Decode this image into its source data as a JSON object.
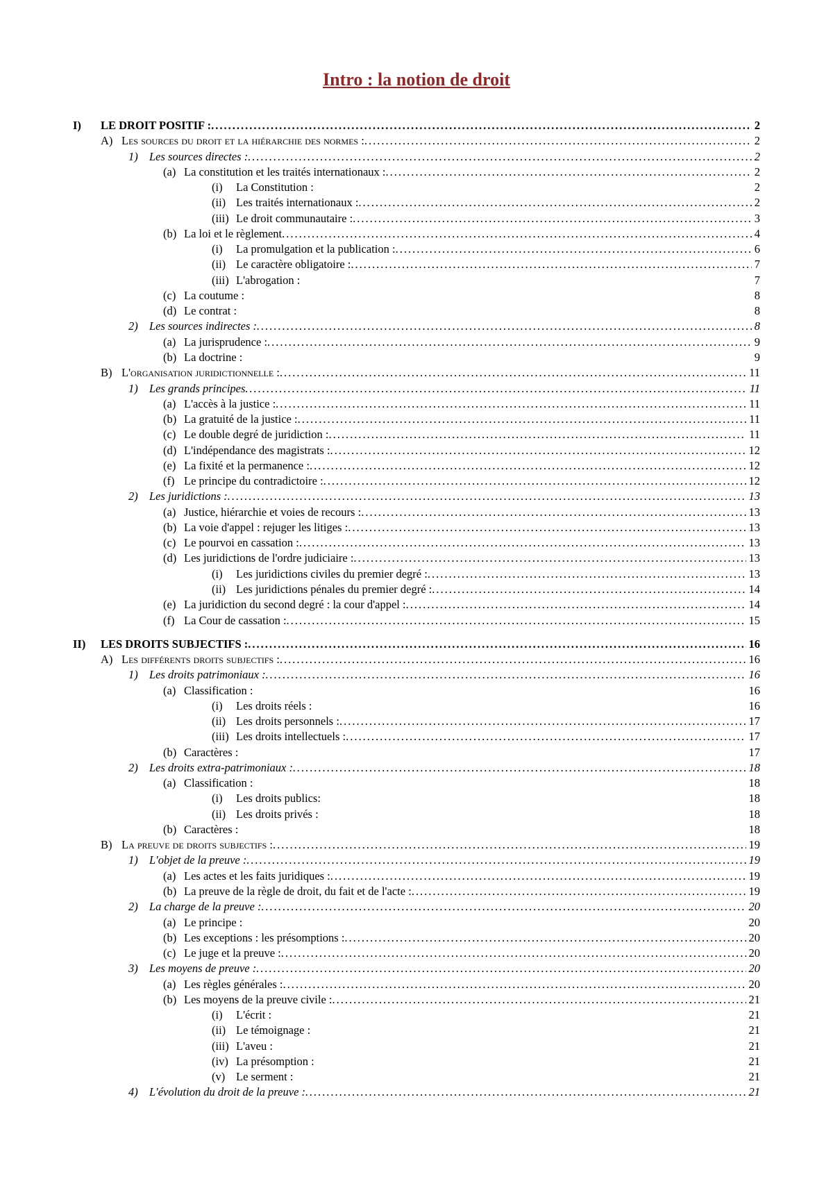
{
  "title": "Intro : la notion de droit",
  "title_color": "#8b2a2a",
  "entries": [
    {
      "level": 1,
      "label": "I)",
      "text": "LE DROIT POSITIF :",
      "page": "2",
      "leader": true,
      "bold": true
    },
    {
      "level": 2,
      "label": "A)",
      "text": "Les sources du droit et la hiérarchie des normes :",
      "page": "2",
      "leader": true,
      "smallcaps": true
    },
    {
      "level": 3,
      "label": "1)",
      "text": "Les sources directes :",
      "page": "2",
      "leader": true,
      "italic": true
    },
    {
      "level": 4,
      "label": "(a)",
      "text": "La constitution et les traités internationaux :",
      "page": "2",
      "leader": true
    },
    {
      "level": 5,
      "label": "(i)",
      "text": "La Constitution :",
      "page": "2",
      "leader": false
    },
    {
      "level": 5,
      "label": "(ii)",
      "text": "Les traités internationaux :",
      "page": "2",
      "leader": true
    },
    {
      "level": 5,
      "label": "(iii)",
      "text": "Le droit communautaire :",
      "page": "3",
      "leader": true
    },
    {
      "level": 4,
      "label": "(b)",
      "text": "La loi et le règlement",
      "page": "4",
      "leader": true
    },
    {
      "level": 5,
      "label": "(i)",
      "text": "La promulgation et la publication :",
      "page": "6",
      "leader": true
    },
    {
      "level": 5,
      "label": "(ii)",
      "text": "Le caractère obligatoire :",
      "page": "7",
      "leader": true
    },
    {
      "level": 5,
      "label": "(iii)",
      "text": "L'abrogation :",
      "page": "7",
      "leader": false
    },
    {
      "level": 4,
      "label": "(c)",
      "text": "La coutume :",
      "page": "8",
      "leader": false
    },
    {
      "level": 4,
      "label": "(d)",
      "text": "Le contrat :",
      "page": "8",
      "leader": false
    },
    {
      "level": 3,
      "label": "2)",
      "text": "Les sources indirectes :",
      "page": "8",
      "leader": true,
      "italic": true
    },
    {
      "level": 4,
      "label": "(a)",
      "text": "La jurisprudence :",
      "page": "9",
      "leader": true
    },
    {
      "level": 4,
      "label": "(b)",
      "text": "La doctrine :",
      "page": "9",
      "leader": false
    },
    {
      "level": 2,
      "label": "B)",
      "text": "L'organisation juridictionnelle :",
      "page": "11",
      "leader": true,
      "smallcaps": true
    },
    {
      "level": 3,
      "label": "1)",
      "text": "Les grands principes",
      "page": "11",
      "leader": true,
      "italic": true
    },
    {
      "level": 4,
      "label": "(a)",
      "text": "L'accès à la justice :",
      "page": "11",
      "leader": true
    },
    {
      "level": 4,
      "label": "(b)",
      "text": "La gratuité de la justice :",
      "page": "11",
      "leader": true
    },
    {
      "level": 4,
      "label": "(c)",
      "text": "Le double degré de juridiction :",
      "page": "11",
      "leader": true
    },
    {
      "level": 4,
      "label": "(d)",
      "text": "L'indépendance des magistrats :",
      "page": "12",
      "leader": true
    },
    {
      "level": 4,
      "label": "(e)",
      "text": "La fixité et la permanence :",
      "page": "12",
      "leader": true
    },
    {
      "level": 4,
      "label": "(f)",
      "text": "Le principe du contradictoire :",
      "page": "12",
      "leader": true
    },
    {
      "level": 3,
      "label": "2)",
      "text": "Les juridictions :",
      "page": "13",
      "leader": true,
      "italic": true
    },
    {
      "level": 4,
      "label": "(a)",
      "text": "Justice, hiérarchie et voies de recours :",
      "page": "13",
      "leader": true
    },
    {
      "level": 4,
      "label": "(b)",
      "text": "La voie d'appel : rejuger les litiges :",
      "page": "13",
      "leader": true
    },
    {
      "level": 4,
      "label": "(c)",
      "text": "Le pourvoi en cassation :",
      "page": "13",
      "leader": true
    },
    {
      "level": 4,
      "label": "(d)",
      "text": "Les juridictions de l'ordre judiciaire :",
      "page": "13",
      "leader": true
    },
    {
      "level": 5,
      "label": "(i)",
      "text": "Les juridictions civiles du premier degré :",
      "page": "13",
      "leader": true
    },
    {
      "level": 5,
      "label": "(ii)",
      "text": "Les juridictions pénales du premier degré :",
      "page": "14",
      "leader": true
    },
    {
      "level": 4,
      "label": "(e)",
      "text": "La juridiction du second degré : la cour d'appel :",
      "page": "14",
      "leader": true
    },
    {
      "level": 4,
      "label": "(f)",
      "text": "La Cour de cassation :",
      "page": "15",
      "leader": true
    },
    {
      "level": 1,
      "label": "II)",
      "text": "LES DROITS SUBJECTIFS :",
      "page": "16",
      "leader": true,
      "bold": true
    },
    {
      "level": 2,
      "label": "A)",
      "text": "Les différents droits subjectifs :",
      "page": "16",
      "leader": true,
      "smallcaps": true
    },
    {
      "level": 3,
      "label": "1)",
      "text": "Les droits patrimoniaux :",
      "page": "16",
      "leader": true,
      "italic": true
    },
    {
      "level": 4,
      "label": "(a)",
      "text": "Classification :",
      "page": "16",
      "leader": false
    },
    {
      "level": 5,
      "label": "(i)",
      "text": "Les droits réels :",
      "page": "16",
      "leader": false
    },
    {
      "level": 5,
      "label": "(ii)",
      "text": "Les droits personnels :",
      "page": "17",
      "leader": true
    },
    {
      "level": 5,
      "label": "(iii)",
      "text": "Les droits intellectuels :",
      "page": "17",
      "leader": true
    },
    {
      "level": 4,
      "label": "(b)",
      "text": "Caractères :",
      "page": "17",
      "leader": false
    },
    {
      "level": 3,
      "label": "2)",
      "text": "Les droits extra-patrimoniaux :",
      "page": "18",
      "leader": true,
      "italic": true
    },
    {
      "level": 4,
      "label": "(a)",
      "text": "Classification :",
      "page": "18",
      "leader": false
    },
    {
      "level": 5,
      "label": "(i)",
      "text": "Les droits publics:",
      "page": "18",
      "leader": false
    },
    {
      "level": 5,
      "label": "(ii)",
      "text": "Les droits privés :",
      "page": "18",
      "leader": false
    },
    {
      "level": 4,
      "label": "(b)",
      "text": "Caractères :",
      "page": "18",
      "leader": false
    },
    {
      "level": 2,
      "label": "B)",
      "text": "La preuve de droits subjectifs :",
      "page": "19",
      "leader": true,
      "smallcaps": true
    },
    {
      "level": 3,
      "label": "1)",
      "text": "L'objet de la preuve :",
      "page": "19",
      "leader": true,
      "italic": true
    },
    {
      "level": 4,
      "label": "(a)",
      "text": "Les actes et les faits juridiques :",
      "page": "19",
      "leader": true
    },
    {
      "level": 4,
      "label": "(b)",
      "text": "La preuve de la règle de droit, du fait et de l'acte :",
      "page": "19",
      "leader": true
    },
    {
      "level": 3,
      "label": "2)",
      "text": "La charge de la preuve :",
      "page": "20",
      "leader": true,
      "italic": true
    },
    {
      "level": 4,
      "label": "(a)",
      "text": "Le principe :",
      "page": "20",
      "leader": false
    },
    {
      "level": 4,
      "label": "(b)",
      "text": "Les exceptions : les présomptions :",
      "page": "20",
      "leader": true
    },
    {
      "level": 4,
      "label": "(c)",
      "text": "Le juge et la preuve :",
      "page": "20",
      "leader": true
    },
    {
      "level": 3,
      "label": "3)",
      "text": "Les moyens de preuve :",
      "page": "20",
      "leader": true,
      "italic": true
    },
    {
      "level": 4,
      "label": "(a)",
      "text": "Les règles générales :",
      "page": "20",
      "leader": true
    },
    {
      "level": 4,
      "label": "(b)",
      "text": "Les moyens de la preuve civile :",
      "page": "21",
      "leader": true
    },
    {
      "level": 5,
      "label": "(i)",
      "text": "L'écrit :",
      "page": "21",
      "leader": false
    },
    {
      "level": 5,
      "label": "(ii)",
      "text": "Le témoignage :",
      "page": "21",
      "leader": false
    },
    {
      "level": 5,
      "label": "(iii)",
      "text": "L'aveu :",
      "page": "21",
      "leader": false
    },
    {
      "level": 5,
      "label": "(iv)",
      "text": "La présomption :",
      "page": "21",
      "leader": false
    },
    {
      "level": 5,
      "label": "(v)",
      "text": "Le serment :",
      "page": "21",
      "leader": false
    },
    {
      "level": 3,
      "label": "4)",
      "text": "L'évolution du droit de la preuve :",
      "page": "21",
      "leader": true,
      "italic": true
    }
  ]
}
